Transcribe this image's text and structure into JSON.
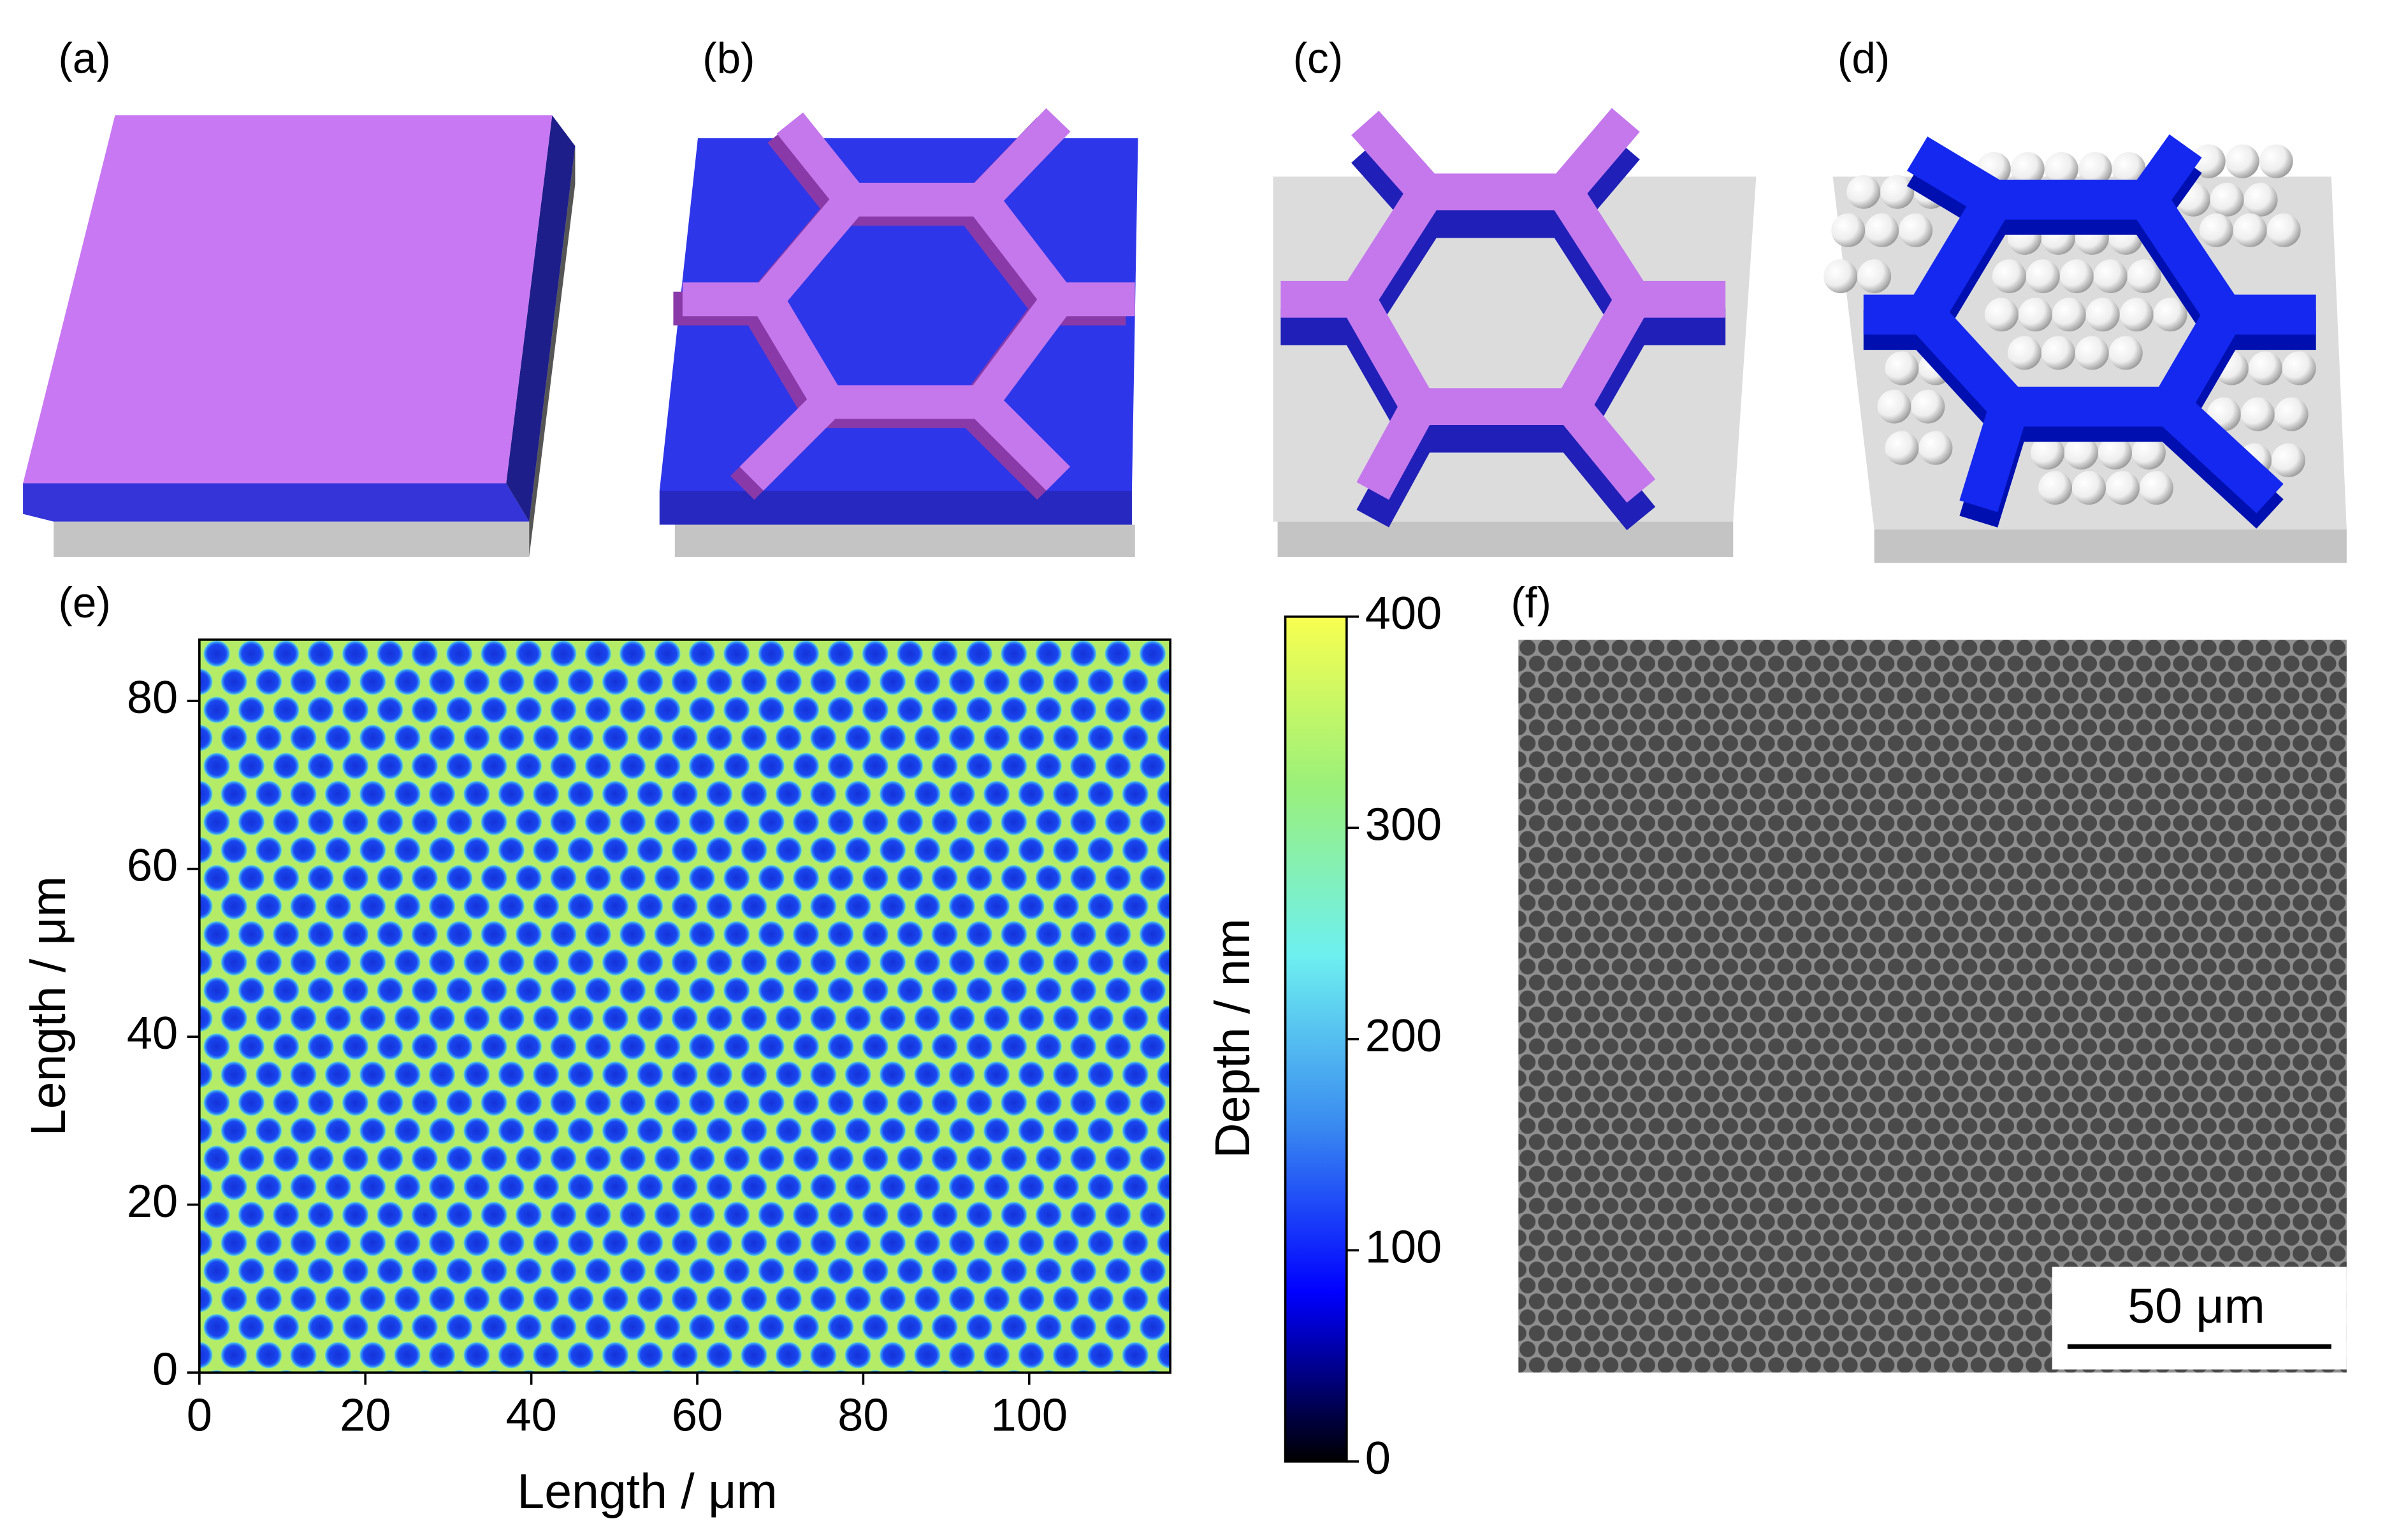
{
  "panel_labels": [
    "(a)",
    "(b)",
    "(c)",
    "(d)",
    "(e)",
    "(f)"
  ],
  "chart_data": {
    "type": "heatmap",
    "xlabel": "Length / μm",
    "ylabel": "Length / μm",
    "xlim": [
      0,
      117
    ],
    "xticks": [
      0,
      20,
      40,
      60,
      80,
      100
    ],
    "ylim": [
      0,
      87.3
    ],
    "yticks": [
      0,
      20,
      40,
      60,
      80
    ],
    "colorbar": {
      "label": "Depth / nm",
      "lim": [
        0,
        400
      ],
      "ticks": [
        0,
        100,
        200,
        300,
        400
      ],
      "colors": [
        "#000000",
        "#0000ff",
        "#3a8cf0",
        "#6ef0f0",
        "#9af07a",
        "#f8ff50"
      ]
    }
  },
  "scale_bar": {
    "label": "50 μm"
  }
}
